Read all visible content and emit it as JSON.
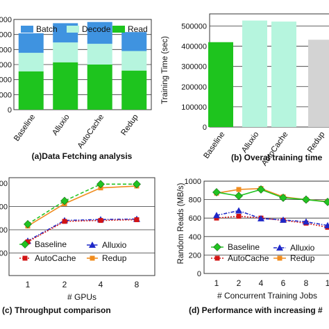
{
  "chart_data": [
    {
      "type": "bar",
      "stacked": true,
      "caption": "(a)Data Fetching analysis",
      "categories": [
        "Baseline",
        "Alluxio",
        "AutoCache",
        "Redup"
      ],
      "y_tick_labels": [
        "000",
        "000",
        "000",
        "000",
        "000",
        "000",
        "0"
      ],
      "ylim": [
        0,
        6000
      ],
      "grid": true,
      "legend_position": "top",
      "series": [
        {
          "name": "Read",
          "color": "#1ec41e",
          "values": [
            2550,
            3150,
            3000,
            2600
          ]
        },
        {
          "name": "Decode",
          "color": "#b6f5de",
          "values": [
            1230,
            1320,
            1380,
            1300
          ]
        },
        {
          "name": "Batch",
          "color": "#3f93e0",
          "values": [
            1300,
            1280,
            1450,
            1260
          ]
        }
      ]
    },
    {
      "type": "bar",
      "caption": "(b) Overal training time",
      "ylabel": "Training Time (sec)",
      "categories": [
        "Baseline",
        "Alluxio",
        "AutoCache",
        "Redup"
      ],
      "values": [
        420000,
        527000,
        522000,
        432000
      ],
      "colors": [
        "#1ec41e",
        "#b6f5de",
        "#b6f5de",
        "#d3d3d3"
      ],
      "y_ticks": [
        "0",
        "100000",
        "200000",
        "300000",
        "400000",
        "500000"
      ],
      "ylim": [
        0,
        560000
      ],
      "grid": true
    },
    {
      "type": "line",
      "caption": "(c) Throughput comparison",
      "xlabel": "# GPUs",
      "x": [
        "1",
        "2",
        "4",
        "8"
      ],
      "y_tick_labels": [
        "00",
        "00",
        "00",
        "00"
      ],
      "ylim": [
        0,
        1000
      ],
      "grid": true,
      "legend_position": "bottom-inside",
      "series": [
        {
          "name": "Baseline",
          "color": "#22c322",
          "marker": "diamond",
          "style": "dashed",
          "values": [
            560,
            810,
            990,
            990
          ]
        },
        {
          "name": "Alluxio",
          "color": "#1e28c8",
          "marker": "triangle",
          "style": "dashdot",
          "values": [
            380,
            600,
            610,
            615
          ]
        },
        {
          "name": "AutoCache",
          "color": "#d21414",
          "marker": "square",
          "style": "dotted",
          "values": [
            370,
            590,
            600,
            608
          ]
        },
        {
          "name": "Redup",
          "color": "#f08c1e",
          "marker": "square",
          "style": "solid",
          "values": [
            540,
            780,
            950,
            970
          ]
        }
      ]
    },
    {
      "type": "line",
      "caption": "(d) Performance with increasing #",
      "xlabel": "# Concurrent Training Jobs",
      "ylabel": "Random Reads (MB/s)",
      "x": [
        "1",
        "2",
        "4",
        "6",
        "8",
        "1"
      ],
      "y_ticks": [
        "0",
        "200",
        "400",
        "600",
        "800",
        "1000"
      ],
      "ylim": [
        0,
        1000
      ],
      "grid": true,
      "legend_position": "bottom-inside",
      "series": [
        {
          "name": "Baseline",
          "color": "#22c322",
          "marker": "diamond",
          "style": "solid",
          "values": [
            880,
            840,
            910,
            820,
            800,
            775
          ]
        },
        {
          "name": "Alluxio",
          "color": "#1e28c8",
          "marker": "triangle",
          "style": "dashdot",
          "values": [
            630,
            680,
            595,
            580,
            560,
            520
          ]
        },
        {
          "name": "AutoCache",
          "color": "#d21414",
          "marker": "square",
          "style": "dotted",
          "values": [
            600,
            620,
            600,
            575,
            545,
            500
          ]
        },
        {
          "name": "Redup",
          "color": "#f08c1e",
          "marker": "square",
          "style": "solid",
          "values": [
            870,
            910,
            920,
            830,
            800,
            780
          ]
        }
      ]
    }
  ]
}
